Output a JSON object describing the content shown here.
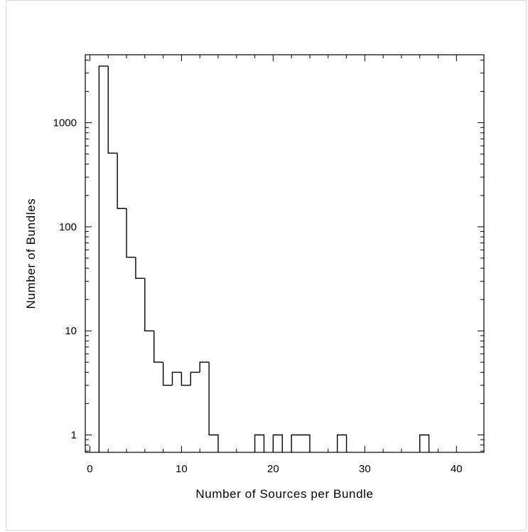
{
  "chart_data": {
    "type": "histogram",
    "title": "",
    "xlabel": "Number of Sources per Bundle",
    "ylabel": "Number of Bundles",
    "xlim": [
      -0.5,
      43
    ],
    "ylim": [
      0.68,
      4500
    ],
    "yscale": "log",
    "grid": false,
    "x_ticks": [
      0,
      10,
      20,
      30,
      40
    ],
    "x_tick_labels": [
      "0",
      "10",
      "20",
      "30",
      "40"
    ],
    "y_ticks": [
      1,
      10,
      100,
      1000
    ],
    "y_tick_labels": [
      "1",
      "10",
      "100",
      "1000"
    ],
    "bins": [
      {
        "x0": 1,
        "x1": 2,
        "count": 3500
      },
      {
        "x0": 2,
        "x1": 3,
        "count": 510
      },
      {
        "x0": 3,
        "x1": 4,
        "count": 150
      },
      {
        "x0": 4,
        "x1": 5,
        "count": 51
      },
      {
        "x0": 5,
        "x1": 6,
        "count": 32
      },
      {
        "x0": 6,
        "x1": 7,
        "count": 10
      },
      {
        "x0": 7,
        "x1": 8,
        "count": 5
      },
      {
        "x0": 8,
        "x1": 9,
        "count": 3
      },
      {
        "x0": 9,
        "x1": 10,
        "count": 4
      },
      {
        "x0": 10,
        "x1": 11,
        "count": 3
      },
      {
        "x0": 11,
        "x1": 12,
        "count": 4
      },
      {
        "x0": 12,
        "x1": 13,
        "count": 5
      },
      {
        "x0": 13,
        "x1": 14,
        "count": 1
      },
      {
        "x0": 18,
        "x1": 19,
        "count": 1
      },
      {
        "x0": 20,
        "x1": 21,
        "count": 1
      },
      {
        "x0": 22,
        "x1": 24,
        "count": 1
      },
      {
        "x0": 27,
        "x1": 28,
        "count": 1
      },
      {
        "x0": 36,
        "x1": 37,
        "count": 1
      }
    ]
  }
}
